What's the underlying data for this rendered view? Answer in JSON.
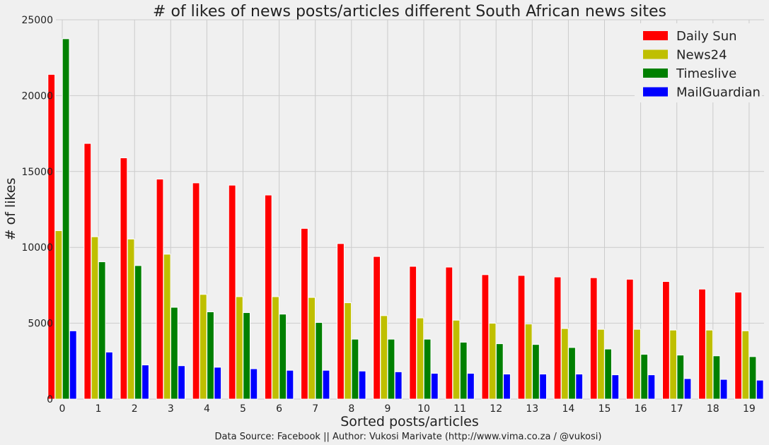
{
  "chart_data": {
    "type": "bar",
    "title": "# of likes of news posts/articles different South African news sites",
    "xlabel": "Sorted posts/articles",
    "ylabel": "# of likes",
    "source_note": "Data Source: Facebook || Author: Vukosi Marivate (http://www.vima.co.za / @vukosi)",
    "categories": [
      "0",
      "1",
      "2",
      "3",
      "4",
      "5",
      "6",
      "7",
      "8",
      "9",
      "10",
      "11",
      "12",
      "13",
      "14",
      "15",
      "16",
      "17",
      "18",
      "19"
    ],
    "ylim": [
      0,
      25000
    ],
    "yticks": [
      0,
      5000,
      10000,
      15000,
      20000,
      25000
    ],
    "grid": true,
    "legend_position": "top-right",
    "series": [
      {
        "name": "Daily Sun",
        "color": "#ff0000",
        "values": [
          21400,
          16850,
          15900,
          14500,
          14250,
          14100,
          13450,
          11250,
          10250,
          9400,
          8750,
          8700,
          8200,
          8150,
          8050,
          8000,
          7900,
          7750,
          7250,
          7050
        ]
      },
      {
        "name": "News24",
        "color": "#bfbf00",
        "values": [
          11100,
          10700,
          10550,
          9550,
          6900,
          6750,
          6750,
          6700,
          6350,
          5500,
          5350,
          5200,
          5000,
          4950,
          4650,
          4600,
          4600,
          4550,
          4550,
          4500
        ]
      },
      {
        "name": "Timeslive",
        "color": "#008000",
        "values": [
          23750,
          9050,
          8800,
          6050,
          5750,
          5700,
          5600,
          5050,
          3950,
          3950,
          3950,
          3750,
          3650,
          3600,
          3400,
          3300,
          2950,
          2900,
          2850,
          2800
        ]
      },
      {
        "name": "MailGuardian",
        "color": "#0000ff",
        "values": [
          4500,
          3100,
          2250,
          2200,
          2100,
          2000,
          1900,
          1900,
          1850,
          1800,
          1700,
          1700,
          1650,
          1650,
          1650,
          1600,
          1600,
          1350,
          1300,
          1250
        ]
      }
    ]
  }
}
